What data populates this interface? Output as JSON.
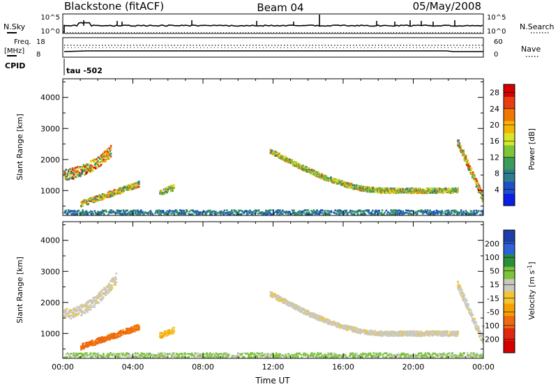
{
  "header": {
    "station": "Blackstone (fitACF)",
    "beam": "Beam 04",
    "date": "05/May/2008"
  },
  "panels": {
    "nsky": {
      "label": "N.Sky",
      "tick_top": "10^5",
      "tick_bottom": "10^0",
      "right_label": "N.Search",
      "right_tick_top": "10^5",
      "right_tick_bottom": "10^0"
    },
    "freq": {
      "label_line1": "Freq.",
      "label_line2": "[MHz]",
      "tick_top": "18",
      "tick_bottom": "8",
      "right_label": "Nave",
      "right_tick_top": "60",
      "right_tick_bottom": "0"
    },
    "cpid": {
      "label": "CPID",
      "value": "tau -502"
    }
  },
  "colors": {
    "power_scale": [
      "#0a1ee6",
      "#1e50c8",
      "#2e7d8c",
      "#3a9b5a",
      "#7dc63a",
      "#d7e62a",
      "#f5b400",
      "#f07800",
      "#e83c14",
      "#d40000"
    ],
    "velocity_scale": [
      "#1f3ca8",
      "#2e62d6",
      "#2b8e3e",
      "#7cc33c",
      "#c9c9c2",
      "#f5c430",
      "#f5a000",
      "#ee6a10",
      "#e02810",
      "#d40000"
    ],
    "groundscatter": "#c9c9c2"
  },
  "chart_data": [
    {
      "type": "heatmap",
      "title": "",
      "xlabel": "",
      "ylabel": "Slant Range [km]",
      "x_ticks": [
        "00:00",
        "04:00",
        "08:00",
        "12:00",
        "16:00",
        "20:00",
        "00:00"
      ],
      "y_ticks": [
        "1000",
        "2000",
        "3000",
        "4000"
      ],
      "ylim": [
        200,
        4600
      ],
      "colorbar": {
        "label": "Power [dB]",
        "ticks": [
          "4",
          "8",
          "12",
          "16",
          "20",
          "24",
          "28"
        ],
        "range": [
          0,
          30
        ]
      },
      "regions": [
        {
          "name": "morning-low-arc",
          "hours": [
            0.0,
            2.7
          ],
          "range_km": [
            1300,
            2300
          ],
          "power_db_peak": 28
        },
        {
          "name": "morning-mid-arc",
          "hours": [
            1.0,
            4.3
          ],
          "range_km": [
            600,
            1300
          ],
          "power_db_peak": 26
        },
        {
          "name": "pre-dawn-patch",
          "hours": [
            5.5,
            6.3
          ],
          "range_km": [
            950,
            1150
          ],
          "power_db_peak": 22
        },
        {
          "name": "near-range-band",
          "hours": [
            0.0,
            24.0
          ],
          "range_km": [
            250,
            400
          ],
          "power_db_peak": 12
        },
        {
          "name": "afternoon-arc",
          "hours": [
            11.8,
            22.5
          ],
          "range_km": [
            800,
            2300
          ],
          "power_db_peak": 24
        },
        {
          "name": "evening-tail",
          "hours": [
            22.5,
            24.0
          ],
          "range_km": [
            700,
            2600
          ],
          "power_db_peak": 28
        }
      ]
    },
    {
      "type": "heatmap",
      "title": "",
      "xlabel": "Time UT",
      "ylabel": "Slant Range [km]",
      "x_ticks": [
        "00:00",
        "04:00",
        "08:00",
        "12:00",
        "16:00",
        "20:00",
        "00:00"
      ],
      "y_ticks": [
        "1000",
        "2000",
        "3000",
        "4000"
      ],
      "ylim": [
        200,
        4600
      ],
      "colorbar": {
        "label": "Velocity [m s^-1]",
        "ticks": [
          "200",
          "100",
          "50",
          "15",
          "-15",
          "-50",
          "-100",
          "-200"
        ],
        "range": [
          -250,
          250
        ]
      },
      "regions": [
        {
          "name": "morning-groundscatter",
          "hours": [
            0.0,
            3.0
          ],
          "range_km": [
            1400,
            2800
          ],
          "velocity_ms": 0
        },
        {
          "name": "morning-flow",
          "hours": [
            1.0,
            4.3
          ],
          "range_km": [
            600,
            1300
          ],
          "velocity_ms": -120
        },
        {
          "name": "pre-dawn-patch",
          "hours": [
            5.5,
            6.3
          ],
          "range_km": [
            950,
            1150
          ],
          "velocity_ms": -40
        },
        {
          "name": "near-range-band",
          "hours": [
            0.0,
            24.0
          ],
          "range_km": [
            250,
            400
          ],
          "velocity_ms": 60
        },
        {
          "name": "afternoon-groundscatter",
          "hours": [
            11.8,
            22.5
          ],
          "range_km": [
            800,
            2300
          ],
          "velocity_ms": 0
        },
        {
          "name": "evening-groundscatter",
          "hours": [
            22.5,
            24.0
          ],
          "range_km": [
            700,
            2600
          ],
          "velocity_ms": 0
        }
      ]
    }
  ]
}
